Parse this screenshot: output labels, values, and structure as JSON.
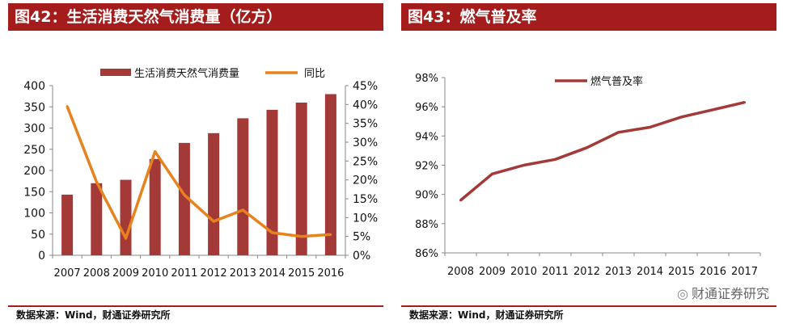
{
  "colors": {
    "accent": "#a51c1c",
    "bar": "#a33a37",
    "line_yoy": "#e8821e",
    "line_gas": "#a33a37"
  },
  "watermark": {
    "icon": "wechat-icon",
    "text": "财通证券研究"
  },
  "panels": [
    {
      "title": "图42：生活消费天然气消费量（亿方）",
      "source": "数据来源：Wind，财通证券研究所",
      "chart_data": {
        "type": "bar",
        "title": "",
        "categories": [
          "2007",
          "2008",
          "2009",
          "2010",
          "2011",
          "2012",
          "2013",
          "2014",
          "2015",
          "2016"
        ],
        "series": [
          {
            "name": "生活消费天然气消费量",
            "kind": "bar",
            "axis": "left",
            "values": [
              143,
              170,
              178,
              227,
              265,
              288,
              323,
              343,
              360,
              380
            ]
          },
          {
            "name": "同比",
            "kind": "line",
            "axis": "right",
            "values": [
              39.5,
              19.5,
              4.5,
              27.5,
              16,
              9,
              12,
              6,
              5,
              5.5
            ]
          }
        ],
        "y_left": {
          "min": 0,
          "max": 400,
          "step": 50,
          "ticks": [
            "0",
            "50",
            "100",
            "150",
            "200",
            "250",
            "300",
            "350",
            "400"
          ]
        },
        "y_right": {
          "min": 0,
          "max": 45,
          "step": 5,
          "ticks": [
            "0%",
            "5%",
            "10%",
            "15%",
            "20%",
            "25%",
            "30%",
            "35%",
            "40%",
            "45%"
          ]
        },
        "legend": "top",
        "grid": false
      }
    },
    {
      "title": "图43：燃气普及率",
      "source": "数据来源：Wind，财通证券研究所",
      "chart_data": {
        "type": "line",
        "title": "",
        "categories": [
          "2008",
          "2009",
          "2010",
          "2011",
          "2012",
          "2013",
          "2014",
          "2015",
          "2016",
          "2017"
        ],
        "series": [
          {
            "name": "燃气普及率",
            "values": [
              89.6,
              91.4,
              92.0,
              92.4,
              93.2,
              94.25,
              94.6,
              95.3,
              95.8,
              96.3
            ]
          }
        ],
        "y": {
          "min": 86,
          "max": 98,
          "step": 2,
          "ticks": [
            "86%",
            "88%",
            "90%",
            "92%",
            "94%",
            "96%",
            "98%"
          ]
        },
        "legend": "top-left",
        "grid": false
      }
    }
  ]
}
